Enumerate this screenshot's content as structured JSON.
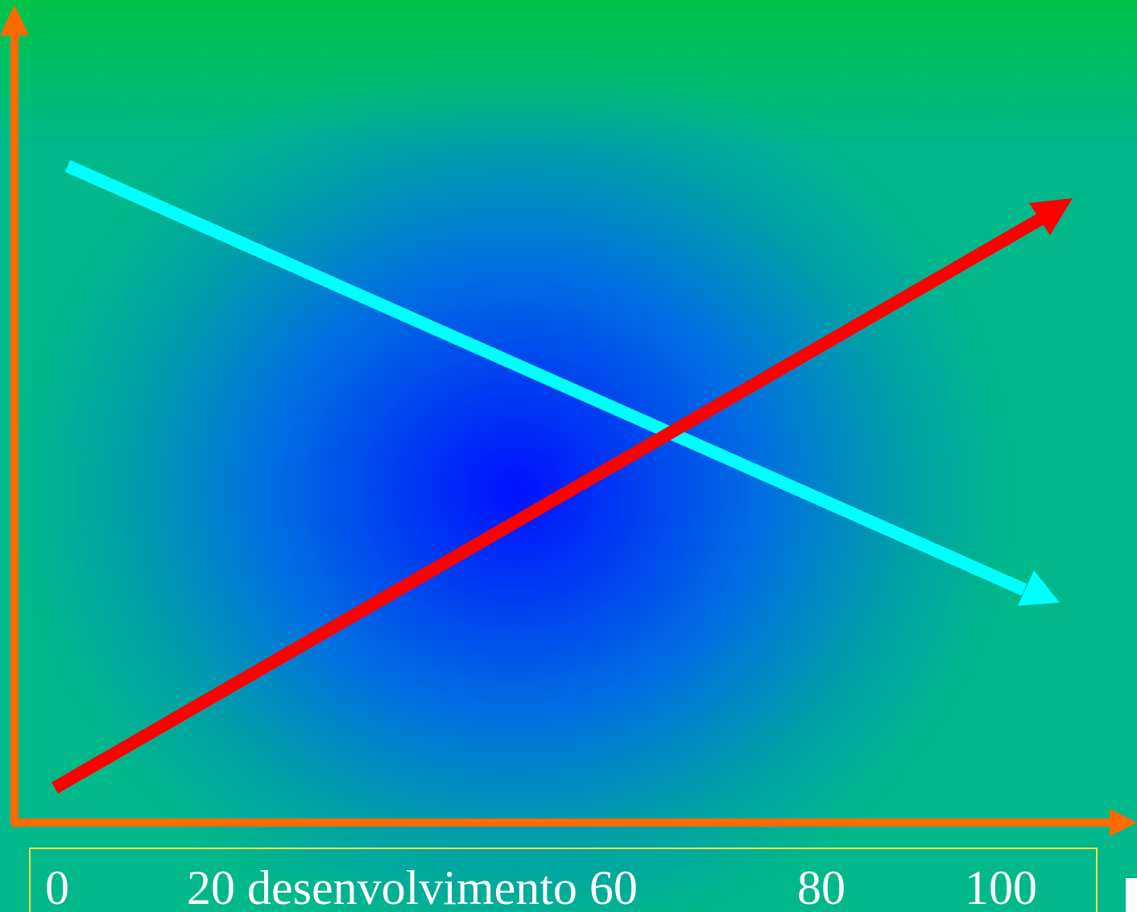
{
  "x_axis": {
    "labels": [
      "0",
      "20 desenvolvimento 60",
      "80",
      "100"
    ]
  },
  "colors": {
    "axis": "#ff6a00",
    "rising_arrow": "#ff0000",
    "falling_arrow": "#00ffff",
    "label_box_border": "#e8e84a",
    "label_text": "#ffffff"
  }
}
